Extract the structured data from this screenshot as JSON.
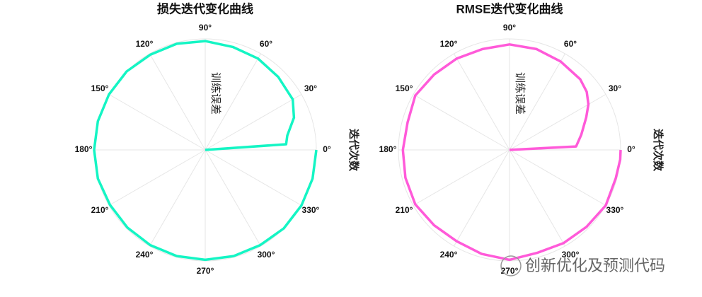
{
  "chart_data": [
    {
      "type": "polar",
      "title": "损失迭代变化曲线",
      "ylabel": "训练误差",
      "xlabel": "迭代次数",
      "color": "#14f5c4",
      "x": [
        0,
        4,
        10,
        20,
        30,
        45,
        60,
        75,
        90,
        105,
        120,
        135,
        150,
        165,
        180,
        195,
        210,
        225,
        240,
        255,
        270,
        285,
        300,
        315,
        330,
        345,
        360
      ],
      "values": [
        0,
        0.73,
        0.75,
        0.85,
        0.91,
        0.93,
        0.95,
        0.96,
        0.98,
        0.99,
        0.99,
        1.0,
        1.0,
        1.0,
        1.0,
        1.0,
        0.99,
        0.99,
        0.99,
        0.99,
        0.99,
        0.99,
        0.99,
        1.0,
        1.0,
        1.0,
        1.0
      ],
      "xlim": [
        0,
        360
      ],
      "ylim": [
        0,
        1
      ],
      "xticks": [
        {
          "value": 0,
          "label": "0°"
        },
        {
          "value": 30,
          "label": "30°"
        },
        {
          "value": 60,
          "label": "60°"
        },
        {
          "value": 90,
          "label": "90°"
        },
        {
          "value": 120,
          "label": "120°"
        },
        {
          "value": 150,
          "label": "150°"
        },
        {
          "value": 180,
          "label": "180°"
        },
        {
          "value": 210,
          "label": "210°"
        },
        {
          "value": 240,
          "label": "240°"
        },
        {
          "value": 270,
          "label": "270°"
        },
        {
          "value": 300,
          "label": "300°"
        },
        {
          "value": 330,
          "label": "330°"
        }
      ],
      "grid": true
    },
    {
      "type": "polar",
      "title": "RMSE迭代变化曲线",
      "ylabel": "训练误差",
      "xlabel": "迭代次数",
      "color": "#ff5ad9",
      "x": [
        0,
        3,
        12,
        23,
        30,
        37,
        45,
        60,
        75,
        90,
        105,
        120,
        135,
        150,
        165,
        180,
        195,
        210,
        225,
        240,
        255,
        270,
        285,
        300,
        315,
        330,
        345,
        355,
        360
      ],
      "values": [
        0,
        0.6,
        0.66,
        0.75,
        0.82,
        0.87,
        0.9,
        0.92,
        0.94,
        0.95,
        0.94,
        0.95,
        0.96,
        0.98,
        0.95,
        0.96,
        0.97,
        0.98,
        0.96,
        0.95,
        0.97,
        0.99,
        0.96,
        0.97,
        0.98,
        1.0,
        0.99,
        1.0,
        1.0
      ],
      "xlim": [
        0,
        360
      ],
      "ylim": [
        0,
        1
      ],
      "xticks": [
        {
          "value": 0,
          "label": "0°"
        },
        {
          "value": 30,
          "label": "30°"
        },
        {
          "value": 60,
          "label": "60°"
        },
        {
          "value": 90,
          "label": "90°"
        },
        {
          "value": 120,
          "label": "120°"
        },
        {
          "value": 150,
          "label": "150°"
        },
        {
          "value": 180,
          "label": "180°"
        },
        {
          "value": 210,
          "label": "210°"
        },
        {
          "value": 240,
          "label": "240°"
        },
        {
          "value": 270,
          "label": "270°"
        },
        {
          "value": 300,
          "label": "300°"
        },
        {
          "value": 330,
          "label": "330°"
        }
      ],
      "grid": true
    }
  ],
  "watermark": "创新优化及预测代码"
}
